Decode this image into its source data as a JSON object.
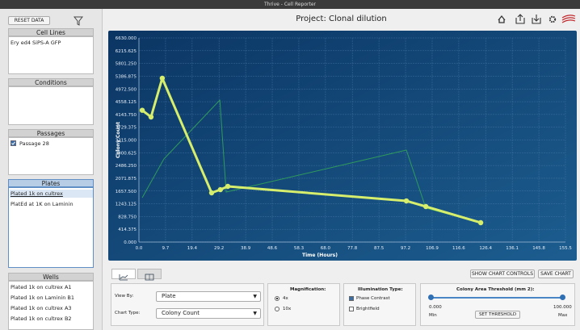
{
  "window": {
    "title": "Thrive - Cell Reporter"
  },
  "sidebar": {
    "reset": "RESET DATA",
    "panels": [
      {
        "title": "Cell Lines",
        "items": [
          {
            "label": "Ery ed4 SiPS-A GFP"
          }
        ]
      },
      {
        "title": "Conditions",
        "items": []
      },
      {
        "title": "Passages",
        "items": [
          {
            "label": "Passage 28",
            "checked": true
          }
        ]
      },
      {
        "title": "Plates",
        "items": [
          {
            "label": "Plated 1k on cultrex",
            "selected": true
          },
          {
            "label": "PlatEd at 1K on Laminin"
          }
        ]
      },
      {
        "title": "Wells",
        "items": [
          {
            "label": "Plated 1k on cultrex A1"
          },
          {
            "label": "Plated 1k on Laminin B1"
          },
          {
            "label": "Plated 1k on cultrex A3"
          },
          {
            "label": "Plated 1k on cultrex B2"
          }
        ]
      }
    ]
  },
  "header": {
    "title": "Project: Clonal dilution"
  },
  "chart_data": {
    "type": "line",
    "x_label": "Time (Hours)",
    "y_label": "Colony Count",
    "xlim": [
      0,
      155.5
    ],
    "ylim": [
      0,
      6630
    ],
    "xticks": [
      {
        "value": 0,
        "label": "0.0"
      },
      9.7,
      19.4,
      29.2,
      38.9,
      48.6,
      58.3,
      {
        "value": 68,
        "label": "68.0"
      },
      77.8,
      87.5,
      97.2,
      106.9,
      116.6,
      126.4,
      136.1,
      145.8,
      155.5
    ],
    "yticks": [
      {
        "value": 0,
        "label": "0.000"
      },
      {
        "value": 414.375,
        "label": "414.375"
      },
      {
        "value": 828.75,
        "label": "828.750"
      },
      {
        "value": 1243.125,
        "label": "1243.125"
      },
      {
        "value": 1657.5,
        "label": "1657.500"
      },
      {
        "value": 2071.875,
        "label": "2071.875"
      },
      {
        "value": 2486.25,
        "label": "2486.250"
      },
      {
        "value": 2900.625,
        "label": "2900.625"
      },
      {
        "value": 3315,
        "label": "3315.000"
      },
      {
        "value": 3729.375,
        "label": "3729.375"
      },
      {
        "value": 4143.75,
        "label": "4143.750"
      },
      {
        "value": 4558.125,
        "label": "4558.125"
      },
      {
        "value": 4972.5,
        "label": "4972.500"
      },
      {
        "value": 5386.875,
        "label": "5386.875"
      },
      {
        "value": 5801.25,
        "label": "5801.250"
      },
      {
        "value": 6215.625,
        "label": "6215.625"
      },
      {
        "value": 6630,
        "label": "6630.000"
      }
    ],
    "grid": true,
    "series": [
      {
        "color": "#2f9a5c",
        "width": 1,
        "marker": false,
        "x": [
          1.2,
          9.1,
          29.5,
          31.8,
          97.5,
          104.6,
          124.6
        ],
        "values": [
          1441,
          2700,
          4612,
          1624,
          2987,
          1101,
          629
        ]
      },
      {
        "color": "#d6ee6c",
        "width": 3,
        "marker": true,
        "x": [
          1.2,
          4.4,
          8.5,
          26.5,
          29.7,
          32.4,
          97.5,
          104.6,
          124.6
        ],
        "values": [
          4280,
          4062,
          5320,
          1598,
          1703,
          1808,
          1336,
          1153,
          629
        ]
      }
    ]
  },
  "controls": {
    "show_controls": "SHOW CHART CONTROLS",
    "save": "SAVE CHART",
    "view_by": {
      "label": "View By:",
      "value": "Plate"
    },
    "chart_type": {
      "label": "Chart Type:",
      "value": "Colony Count"
    },
    "magnification": {
      "label": "Magnification:",
      "options": [
        {
          "label": "4x",
          "checked": true
        },
        {
          "label": "10x",
          "checked": false
        }
      ]
    },
    "illumination": {
      "label": "Illumination Type:",
      "options": [
        {
          "label": "Phase Contrast",
          "checked": true
        },
        {
          "label": "Brightfield",
          "checked": false
        }
      ]
    },
    "threshold": {
      "label": "Colony Area Threshold (mm 2):",
      "min": "0.000",
      "max": "100.000",
      "min_label": "Min",
      "max_label": "Max",
      "button": "SET THRESHOLD"
    }
  }
}
